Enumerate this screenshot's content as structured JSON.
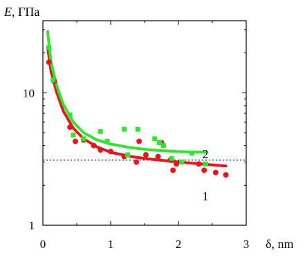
{
  "chart_data": {
    "type": "scatter",
    "xlabel": "δ, nm",
    "ylabel": "E, ГПа",
    "ylabel_italic": "E",
    "ylabel_rest": ", ГПа",
    "xlim": [
      0,
      3
    ],
    "ylim": [
      1,
      35
    ],
    "yscale": "log",
    "x_ticks": [
      0,
      1,
      2,
      3
    ],
    "x_tick_labels": [
      "0",
      "1",
      "2",
      "3"
    ],
    "y_ticks": [
      1,
      10
    ],
    "y_tick_labels": [
      "1",
      "10"
    ],
    "grid": false,
    "reference_line": {
      "y": 3.1,
      "style": "dotted"
    },
    "series": [
      {
        "name": "1",
        "color": "#e8141e",
        "marker": "circle",
        "points": [
          [
            0.09,
            17.0
          ],
          [
            0.17,
            12.2
          ],
          [
            0.4,
            5.5
          ],
          [
            0.48,
            4.3
          ],
          [
            0.6,
            4.4
          ],
          [
            0.75,
            4.0
          ],
          [
            0.85,
            3.7
          ],
          [
            1.0,
            3.6
          ],
          [
            1.2,
            3.3
          ],
          [
            1.38,
            3.0
          ],
          [
            1.42,
            4.3
          ],
          [
            1.52,
            3.4
          ],
          [
            1.7,
            3.3
          ],
          [
            1.75,
            4.2
          ],
          [
            1.88,
            3.1
          ],
          [
            1.92,
            2.6
          ],
          [
            1.97,
            2.9
          ],
          [
            2.3,
            2.9
          ],
          [
            2.38,
            2.6
          ],
          [
            2.55,
            2.5
          ],
          [
            2.7,
            2.4
          ]
        ],
        "fit": [
          [
            0.07,
            22.0
          ],
          [
            0.12,
            14.5
          ],
          [
            0.2,
            10.2
          ],
          [
            0.3,
            7.3
          ],
          [
            0.45,
            5.4
          ],
          [
            0.6,
            4.5
          ],
          [
            0.8,
            3.9
          ],
          [
            1.0,
            3.55
          ],
          [
            1.3,
            3.3
          ],
          [
            1.6,
            3.15
          ],
          [
            2.0,
            3.0
          ],
          [
            2.4,
            2.88
          ],
          [
            2.7,
            2.8
          ]
        ]
      },
      {
        "name": "2",
        "color": "#2ee82e",
        "marker": "square",
        "points": [
          [
            0.09,
            22.0
          ],
          [
            0.15,
            12.5
          ],
          [
            0.4,
            6.8
          ],
          [
            0.45,
            4.8
          ],
          [
            0.6,
            4.5
          ],
          [
            0.85,
            5.1
          ],
          [
            0.95,
            4.3
          ],
          [
            1.2,
            5.3
          ],
          [
            1.25,
            3.4
          ],
          [
            1.4,
            5.3
          ],
          [
            1.65,
            4.5
          ],
          [
            1.72,
            4.2
          ],
          [
            1.78,
            4.0
          ],
          [
            1.9,
            3.2
          ],
          [
            2.05,
            3.0
          ],
          [
            2.2,
            3.5
          ],
          [
            2.4,
            2.9
          ]
        ],
        "fit": [
          [
            0.07,
            29.0
          ],
          [
            0.12,
            17.0
          ],
          [
            0.2,
            11.5
          ],
          [
            0.3,
            8.2
          ],
          [
            0.45,
            6.0
          ],
          [
            0.6,
            5.0
          ],
          [
            0.8,
            4.4
          ],
          [
            1.0,
            4.1
          ],
          [
            1.3,
            3.85
          ],
          [
            1.6,
            3.7
          ],
          [
            2.0,
            3.6
          ],
          [
            2.4,
            3.55
          ]
        ]
      }
    ]
  }
}
